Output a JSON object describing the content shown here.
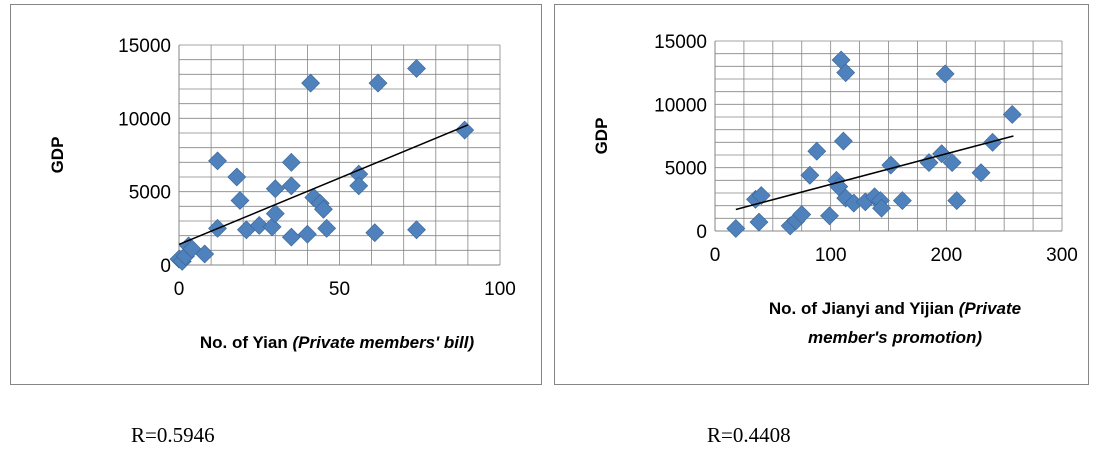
{
  "chart_data": [
    {
      "type": "scatter",
      "title": "",
      "ylabel": "GDP",
      "xlabel_main": "No. of Yian",
      "xlabel_italic": "(Private members' bill)",
      "xlim": [
        0,
        100
      ],
      "ylim": [
        0,
        15000
      ],
      "xticks": [
        0,
        50,
        100
      ],
      "yticks": [
        0,
        5000,
        10000,
        15000
      ],
      "grid": true,
      "marker": "diamond",
      "marker_color": "#4f81bd",
      "trendline": {
        "x": [
          0,
          90
        ],
        "y": [
          1400,
          9550
        ]
      },
      "points": [
        {
          "x": 0,
          "y": 400
        },
        {
          "x": 1,
          "y": 250
        },
        {
          "x": 2,
          "y": 600
        },
        {
          "x": 3,
          "y": 1300
        },
        {
          "x": 4,
          "y": 1100
        },
        {
          "x": 8,
          "y": 750
        },
        {
          "x": 12,
          "y": 2500
        },
        {
          "x": 12,
          "y": 7100
        },
        {
          "x": 18,
          "y": 6000
        },
        {
          "x": 19,
          "y": 4400
        },
        {
          "x": 21,
          "y": 2400
        },
        {
          "x": 25,
          "y": 2700
        },
        {
          "x": 29,
          "y": 2600
        },
        {
          "x": 30,
          "y": 3500
        },
        {
          "x": 30,
          "y": 5200
        },
        {
          "x": 35,
          "y": 5400
        },
        {
          "x": 35,
          "y": 7000
        },
        {
          "x": 35,
          "y": 1900
        },
        {
          "x": 40,
          "y": 2100
        },
        {
          "x": 41,
          "y": 12400
        },
        {
          "x": 42,
          "y": 4600
        },
        {
          "x": 44,
          "y": 4200
        },
        {
          "x": 45,
          "y": 3800
        },
        {
          "x": 46,
          "y": 2500
        },
        {
          "x": 56,
          "y": 6200
        },
        {
          "x": 56,
          "y": 5400
        },
        {
          "x": 61,
          "y": 2200
        },
        {
          "x": 62,
          "y": 12400
        },
        {
          "x": 74,
          "y": 13400
        },
        {
          "x": 74,
          "y": 2400
        },
        {
          "x": 89,
          "y": 9200
        }
      ]
    },
    {
      "type": "scatter",
      "title": "",
      "ylabel": "GDP",
      "xlabel_line1_main": "No. of Jianyi and Yijian",
      "xlabel_line1_italic": "(Private",
      "xlabel_line2_italic": "member's promotion)",
      "xlim": [
        0,
        300
      ],
      "ylim": [
        0,
        15000
      ],
      "xticks": [
        0,
        100,
        200,
        300
      ],
      "yticks": [
        0,
        5000,
        10000,
        15000
      ],
      "grid": true,
      "marker": "diamond",
      "marker_color": "#4f81bd",
      "trendline": {
        "x": [
          18,
          258
        ],
        "y": [
          1700,
          7500
        ]
      },
      "points": [
        {
          "x": 18,
          "y": 200
        },
        {
          "x": 35,
          "y": 2500
        },
        {
          "x": 38,
          "y": 700
        },
        {
          "x": 40,
          "y": 2800
        },
        {
          "x": 65,
          "y": 400
        },
        {
          "x": 70,
          "y": 800
        },
        {
          "x": 75,
          "y": 1300
        },
        {
          "x": 82,
          "y": 4400
        },
        {
          "x": 88,
          "y": 6300
        },
        {
          "x": 99,
          "y": 1200
        },
        {
          "x": 105,
          "y": 4000
        },
        {
          "x": 107,
          "y": 3500
        },
        {
          "x": 109,
          "y": 13500
        },
        {
          "x": 111,
          "y": 7100
        },
        {
          "x": 113,
          "y": 12500
        },
        {
          "x": 113,
          "y": 2600
        },
        {
          "x": 120,
          "y": 2200
        },
        {
          "x": 130,
          "y": 2300
        },
        {
          "x": 138,
          "y": 2700
        },
        {
          "x": 143,
          "y": 2400
        },
        {
          "x": 144,
          "y": 1800
        },
        {
          "x": 152,
          "y": 5200
        },
        {
          "x": 162,
          "y": 2400
        },
        {
          "x": 185,
          "y": 5400
        },
        {
          "x": 196,
          "y": 6100
        },
        {
          "x": 199,
          "y": 12400
        },
        {
          "x": 205,
          "y": 5400
        },
        {
          "x": 209,
          "y": 2400
        },
        {
          "x": 230,
          "y": 4600
        },
        {
          "x": 240,
          "y": 7000
        },
        {
          "x": 257,
          "y": 9200
        }
      ]
    }
  ],
  "captions": {
    "left": "R=0.5946",
    "right": "R=0.4408"
  }
}
